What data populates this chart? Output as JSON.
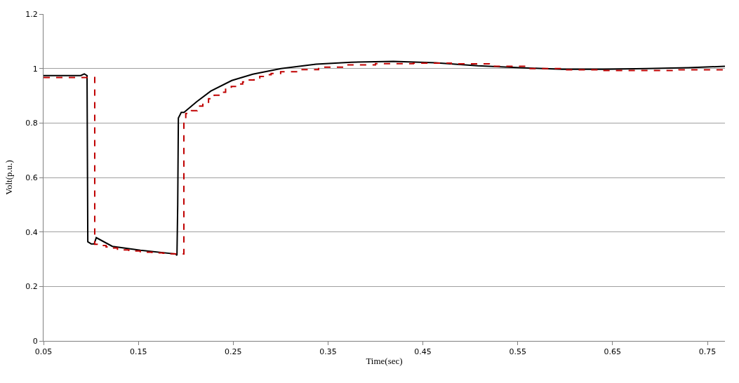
{
  "chart_data": {
    "type": "line",
    "xlabel": "Time(sec)",
    "ylabel": "Volt(p.u.)",
    "xlim": [
      0.05,
      0.7685
    ],
    "xticks": [
      0.05,
      0.15,
      0.25,
      0.35,
      0.45,
      0.55,
      0.65,
      0.75
    ],
    "ylim": [
      0,
      1.2
    ],
    "yticks": [
      0,
      0.2,
      0.4,
      0.6,
      0.8,
      1,
      1.2
    ],
    "grid": "y",
    "series": [
      {
        "line_style": "solid",
        "color": "#000000",
        "x": [
          0.05,
          0.0893,
          0.093,
          0.0959,
          0.0967,
          0.1004,
          0.1035,
          0.1056,
          0.1226,
          0.1522,
          0.1893,
          0.1907,
          0.1915,
          0.1922,
          0.1952,
          0.1981,
          0.2115,
          0.2263,
          0.2485,
          0.2707,
          0.3004,
          0.3374,
          0.3744,
          0.4189,
          0.4633,
          0.5078,
          0.5522,
          0.5967,
          0.6411,
          0.6856,
          0.73,
          0.7685
        ],
        "values": [
          0.974,
          0.974,
          0.98,
          0.974,
          0.364,
          0.356,
          0.356,
          0.379,
          0.347,
          0.333,
          0.319,
          0.314,
          0.5,
          0.818,
          0.839,
          0.839,
          0.878,
          0.917,
          0.956,
          0.979,
          1.0,
          1.016,
          1.023,
          1.026,
          1.021,
          1.01,
          1.003,
          0.997,
          0.997,
          1.0,
          1.003,
          1.008
        ]
      },
      {
        "type": "step",
        "line_style": "dashed",
        "color": "#c00000",
        "x": [
          0.05,
          0.104,
          0.11,
          0.116,
          0.122,
          0.128,
          0.134,
          0.14,
          0.146,
          0.152,
          0.158,
          0.164,
          0.17,
          0.176,
          0.182,
          0.188,
          0.198,
          0.2,
          0.206,
          0.212,
          0.218,
          0.224,
          0.23,
          0.236,
          0.242,
          0.248,
          0.254,
          0.26,
          0.266,
          0.272,
          0.278,
          0.284,
          0.29,
          0.3,
          0.32,
          0.34,
          0.37,
          0.4,
          0.44,
          0.48,
          0.52,
          0.56,
          0.6,
          0.64,
          0.68,
          0.72,
          0.7685
        ],
        "values": [
          0.967,
          0.355,
          0.35,
          0.345,
          0.341,
          0.337,
          0.334,
          0.332,
          0.33,
          0.328,
          0.326,
          0.325,
          0.323,
          0.322,
          0.32,
          0.319,
          0.81,
          0.835,
          0.845,
          0.862,
          0.876,
          0.889,
          0.902,
          0.913,
          0.924,
          0.934,
          0.943,
          0.951,
          0.958,
          0.965,
          0.971,
          0.977,
          0.982,
          0.988,
          0.996,
          1.005,
          1.013,
          1.018,
          1.02,
          1.017,
          1.008,
          1.0,
          0.995,
          0.993,
          0.993,
          0.995,
          0.999
        ]
      }
    ]
  }
}
